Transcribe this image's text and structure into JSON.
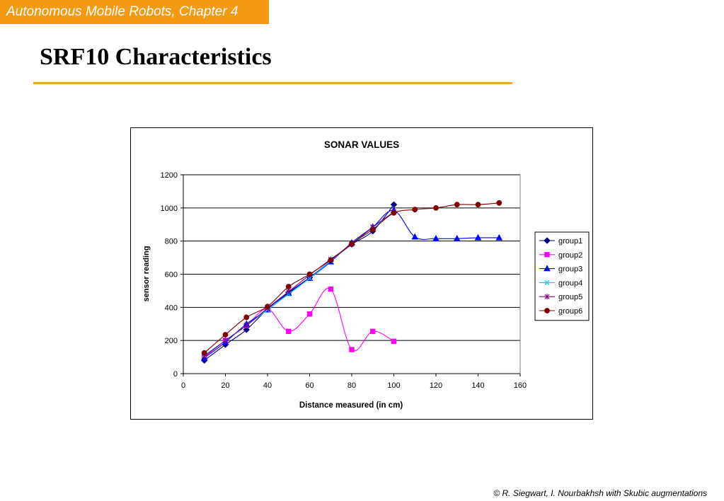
{
  "header": {
    "tag": "Autonomous Mobile Robots, Chapter 4",
    "title": "SRF10 Characteristics"
  },
  "footer": {
    "credit": "© R. Siegwart, I. Nourbakhsh with Skubic augmentations"
  },
  "colors": {
    "accent": "#f39a12",
    "rule": "#f3a42a"
  },
  "chart_data": {
    "type": "line",
    "title": "SONAR VALUES",
    "xlabel": "Distance measured (in cm)",
    "ylabel": "sensor reading",
    "xlim": [
      0,
      160
    ],
    "ylim": [
      0,
      1200
    ],
    "xticks": [
      0,
      20,
      40,
      60,
      80,
      100,
      120,
      140,
      160
    ],
    "yticks": [
      0,
      200,
      400,
      600,
      800,
      1000,
      1200
    ],
    "grid": "horizontal",
    "legend": "right",
    "series": [
      {
        "name": "group1",
        "color": "#000080",
        "marker": "diamond",
        "x": [
          10,
          20,
          30,
          40,
          50,
          60,
          70,
          80,
          90,
          100
        ],
        "y": [
          80,
          175,
          265,
          390,
          490,
          580,
          680,
          780,
          860,
          1020
        ]
      },
      {
        "name": "group2",
        "color": "#ff00ff",
        "marker": "square",
        "x": [
          10,
          20,
          30,
          40,
          50,
          60,
          70,
          80,
          90,
          100
        ],
        "y": [
          100,
          200,
          290,
          390,
          255,
          360,
          510,
          145,
          255,
          195
        ]
      },
      {
        "name": "group3",
        "color": "#0000ff",
        "marker": "triangle",
        "x": [
          10,
          20,
          30,
          40,
          50,
          60,
          70,
          80,
          90,
          100,
          110,
          120,
          130,
          140,
          150
        ],
        "y": [
          95,
          190,
          300,
          385,
          485,
          575,
          675,
          790,
          885,
          985,
          825,
          815,
          815,
          820,
          820
        ]
      },
      {
        "name": "group4",
        "color": "#00c8ff",
        "marker": "x",
        "x": [
          10,
          20,
          30,
          40,
          50,
          60,
          70,
          80,
          90,
          100
        ],
        "y": [
          110,
          200,
          290,
          385,
          480,
          575,
          680,
          785,
          880,
          975
        ]
      },
      {
        "name": "group5",
        "color": "#800080",
        "marker": "star",
        "x": [
          10,
          20,
          30,
          40,
          50,
          60,
          70,
          80,
          90,
          100
        ],
        "y": [
          105,
          200,
          290,
          395,
          495,
          595,
          690,
          780,
          885,
          975
        ]
      },
      {
        "name": "group6",
        "color": "#800000",
        "marker": "circle",
        "x": [
          10,
          20,
          30,
          40,
          50,
          60,
          70,
          80,
          90,
          100,
          110,
          120,
          130,
          140,
          150
        ],
        "y": [
          125,
          235,
          340,
          405,
          525,
          600,
          685,
          785,
          870,
          970,
          990,
          1000,
          1020,
          1020,
          1030
        ]
      }
    ]
  }
}
